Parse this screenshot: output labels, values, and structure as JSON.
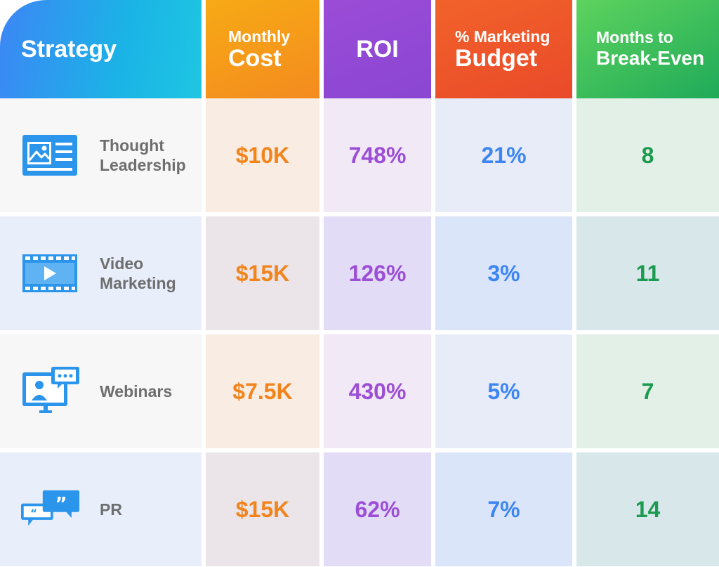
{
  "colors": {
    "strategy_header": "#3d86f5",
    "cost": "#f2841c",
    "roi": "#9c4fd6",
    "budget": "#3d86f2",
    "months": "#1c9a50",
    "icon": "#2b95ec"
  },
  "headers": {
    "strategy": "Strategy",
    "cost_line1": "Monthly",
    "cost_line2": "Cost",
    "roi": "ROI",
    "budget_line1": "% Marketing",
    "budget_line2": "Budget",
    "months_line1": "Months to",
    "months_line2": "Break-Even"
  },
  "rows": [
    {
      "strategy": "Thought\nLeadership",
      "icon": "article-icon",
      "cost": "$10K",
      "roi": "748%",
      "budget": "21%",
      "months": "8"
    },
    {
      "strategy": "Video\nMarketing",
      "icon": "video-play-icon",
      "cost": "$15K",
      "roi": "126%",
      "budget": "3%",
      "months": "11"
    },
    {
      "strategy": "Webinars",
      "icon": "webinar-icon",
      "cost": "$7.5K",
      "roi": "430%",
      "budget": "5%",
      "months": "7"
    },
    {
      "strategy": "PR",
      "icon": "quote-bubbles-icon",
      "cost": "$15K",
      "roi": "62%",
      "budget": "7%",
      "months": "14"
    }
  ],
  "chart_data": {
    "type": "table",
    "columns": [
      "Strategy",
      "Monthly Cost",
      "ROI",
      "% Marketing Budget",
      "Months to Break-Even"
    ],
    "rows": [
      [
        "Thought Leadership",
        "$10K",
        "748%",
        "21%",
        "8"
      ],
      [
        "Video Marketing",
        "$15K",
        "126%",
        "3%",
        "11"
      ],
      [
        "Webinars",
        "$7.5K",
        "430%",
        "5%",
        "7"
      ],
      [
        "PR",
        "$15K",
        "62%",
        "7%",
        "14"
      ]
    ]
  }
}
